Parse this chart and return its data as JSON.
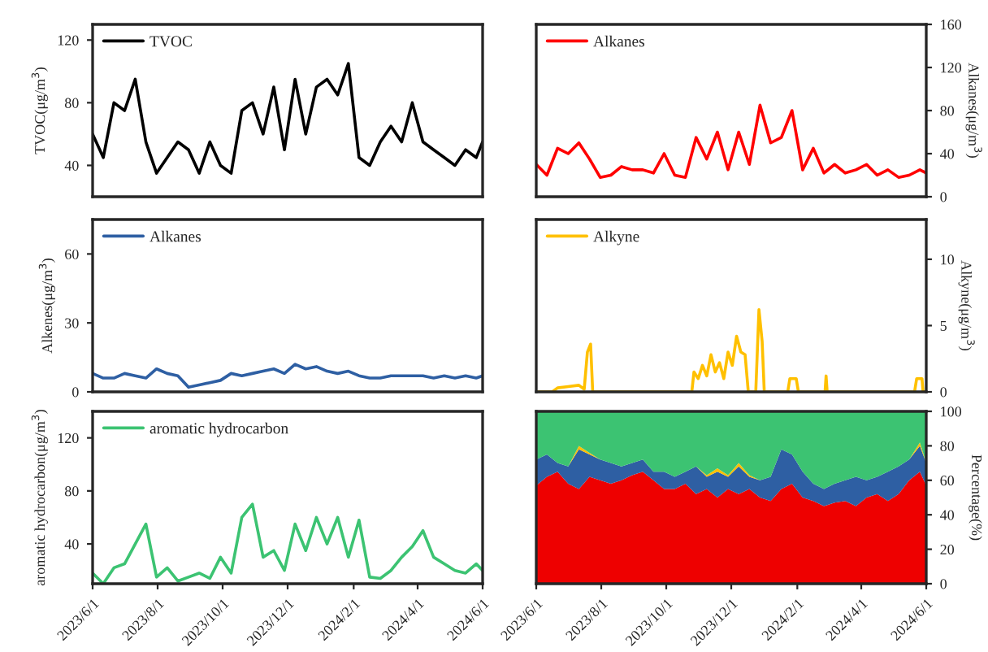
{
  "chart_data": [
    {
      "type": "line",
      "ylabel": "TVOC(μg/m$^{3}$)",
      "legend": "top left",
      "tick_labels": "y",
      "x": [
        "2023-06-01",
        "2023-06-11",
        "2023-06-21",
        "2023-07-01",
        "2023-07-11",
        "2023-07-21",
        "2023-07-31",
        "2023-08-10",
        "2023-08-20",
        "2023-08-30",
        "2023-09-09",
        "2023-09-19",
        "2023-09-29",
        "2023-10-09",
        "2023-10-19",
        "2023-10-29",
        "2023-11-08",
        "2023-11-18",
        "2023-11-28",
        "2023-12-08",
        "2023-12-18",
        "2023-12-28",
        "2024-01-07",
        "2024-01-17",
        "2024-01-27",
        "2024-02-06",
        "2024-02-16",
        "2024-02-26",
        "2024-03-07",
        "2024-03-17",
        "2024-03-27",
        "2024-04-06",
        "2024-04-16",
        "2024-04-26",
        "2024-05-06",
        "2024-05-16",
        "2024-05-26",
        "2024-06-01"
      ],
      "series": [
        {
          "name": "TVOC",
          "color": "#000000",
          "values": [
            60,
            45,
            80,
            75,
            95,
            55,
            35,
            45,
            55,
            50,
            35,
            55,
            40,
            35,
            75,
            80,
            60,
            90,
            50,
            95,
            60,
            90,
            95,
            85,
            105,
            45,
            40,
            55,
            65,
            55,
            80,
            55,
            50,
            45,
            40,
            50,
            45,
            55
          ]
        }
      ],
      "xlim": [
        "2023-06-01",
        "2024-06-01"
      ],
      "ylim": [
        20,
        130
      ],
      "yticks": [
        40,
        80,
        120
      ]
    },
    {
      "type": "line",
      "ylabel": "Alkanes(μg/m$^{3}$)",
      "legend": "top left",
      "tick_labels": "y",
      "x": [
        "2023-06-01",
        "2023-06-11",
        "2023-06-21",
        "2023-07-01",
        "2023-07-11",
        "2023-07-21",
        "2023-07-31",
        "2023-08-10",
        "2023-08-20",
        "2023-08-30",
        "2023-09-09",
        "2023-09-19",
        "2023-09-29",
        "2023-10-09",
        "2023-10-19",
        "2023-10-29",
        "2023-11-08",
        "2023-11-18",
        "2023-11-28",
        "2023-12-08",
        "2023-12-18",
        "2023-12-28",
        "2024-01-07",
        "2024-01-17",
        "2024-01-27",
        "2024-02-06",
        "2024-02-16",
        "2024-02-26",
        "2024-03-07",
        "2024-03-17",
        "2024-03-27",
        "2024-04-06",
        "2024-04-16",
        "2024-04-26",
        "2024-05-06",
        "2024-05-16",
        "2024-05-26",
        "2024-06-01"
      ],
      "series": [
        {
          "name": "Alkanes",
          "color": "#ff0000",
          "values": [
            30,
            20,
            45,
            40,
            50,
            35,
            18,
            20,
            28,
            25,
            25,
            22,
            40,
            20,
            18,
            55,
            35,
            60,
            25,
            60,
            30,
            85,
            50,
            55,
            80,
            25,
            45,
            22,
            30,
            22,
            25,
            30,
            20,
            25,
            18,
            20,
            25,
            22
          ]
        }
      ],
      "xlim": [
        "2023-06-01",
        "2024-06-01"
      ],
      "ylim": [
        0,
        160
      ],
      "yticks": [
        0,
        40,
        80,
        120,
        160
      ]
    },
    {
      "type": "line",
      "ylabel": "Alkenes(μg/m$^{3}$)",
      "legend": "top left",
      "tick_labels": "y",
      "x": [
        "2023-06-01",
        "2023-06-11",
        "2023-06-21",
        "2023-07-01",
        "2023-07-11",
        "2023-07-21",
        "2023-07-31",
        "2023-08-10",
        "2023-08-20",
        "2023-08-30",
        "2023-09-09",
        "2023-09-19",
        "2023-09-29",
        "2023-10-09",
        "2023-10-19",
        "2023-10-29",
        "2023-11-08",
        "2023-11-18",
        "2023-11-28",
        "2023-12-08",
        "2023-12-18",
        "2023-12-28",
        "2024-01-07",
        "2024-01-17",
        "2024-01-27",
        "2024-02-06",
        "2024-02-16",
        "2024-02-26",
        "2024-03-07",
        "2024-03-17",
        "2024-03-27",
        "2024-04-06",
        "2024-04-16",
        "2024-04-26",
        "2024-05-06",
        "2024-05-16",
        "2024-05-26",
        "2024-06-01"
      ],
      "series": [
        {
          "name": "Alkanes",
          "color": "#2e5fa3",
          "values": [
            8,
            6,
            6,
            8,
            7,
            6,
            10,
            8,
            7,
            2,
            3,
            4,
            5,
            8,
            7,
            8,
            9,
            10,
            8,
            12,
            10,
            11,
            9,
            8,
            9,
            7,
            6,
            6,
            7,
            7,
            7,
            7,
            6,
            7,
            6,
            7,
            6,
            7
          ]
        }
      ],
      "xlim": [
        "2023-06-01",
        "2024-06-01"
      ],
      "ylim": [
        0,
        75
      ],
      "yticks": [
        0,
        30,
        60
      ]
    },
    {
      "type": "line",
      "ylabel": "Alkyne(μg/m$^{3}$)",
      "legend": "top left",
      "tick_labels": "y",
      "x": [
        "2023-06-01",
        "2023-06-16",
        "2023-06-21",
        "2023-07-01",
        "2023-07-11",
        "2023-07-16",
        "2023-07-19",
        "2023-07-22",
        "2023-07-24",
        "2023-10-25",
        "2023-10-27",
        "2023-10-31",
        "2023-11-04",
        "2023-11-08",
        "2023-11-12",
        "2023-11-16",
        "2023-11-20",
        "2023-11-24",
        "2023-11-28",
        "2023-12-02",
        "2023-12-06",
        "2023-12-10",
        "2023-12-14",
        "2023-12-17",
        "2023-12-24",
        "2023-12-27",
        "2023-12-30",
        "2024-01-01",
        "2024-01-23",
        "2024-01-25",
        "2024-01-31",
        "2024-02-02",
        "2024-02-27",
        "2024-02-28",
        "2024-02-29",
        "2024-05-21",
        "2024-05-23",
        "2024-05-28",
        "2024-05-29",
        "2024-06-01"
      ],
      "series": [
        {
          "name": "Alkyne",
          "color": "#ffc000",
          "values": [
            0,
            0,
            0.3,
            0.4,
            0.5,
            0.2,
            3.0,
            3.6,
            0,
            0,
            1.5,
            1.0,
            2.0,
            1.2,
            2.8,
            1.5,
            2.2,
            1.0,
            3.0,
            2.0,
            4.2,
            3.0,
            2.8,
            0,
            0,
            6.2,
            3.8,
            0,
            0,
            1.0,
            1.0,
            0,
            0,
            1.2,
            0,
            0,
            1.0,
            1.0,
            0,
            0
          ]
        }
      ],
      "xlim": [
        "2023-06-01",
        "2024-06-01"
      ],
      "ylim": [
        0,
        13
      ],
      "yticks": [
        0,
        5,
        10
      ]
    },
    {
      "type": "line",
      "ylabel": "aromatic hydrocarbon(μg/m$^{3}$)",
      "legend": "top left",
      "x": [
        "2023-06-01",
        "2023-06-11",
        "2023-06-21",
        "2023-07-01",
        "2023-07-11",
        "2023-07-21",
        "2023-07-31",
        "2023-08-10",
        "2023-08-20",
        "2023-08-30",
        "2023-09-09",
        "2023-09-19",
        "2023-09-29",
        "2023-10-09",
        "2023-10-19",
        "2023-10-29",
        "2023-11-08",
        "2023-11-18",
        "2023-11-28",
        "2023-12-08",
        "2023-12-18",
        "2023-12-28",
        "2024-01-07",
        "2024-01-17",
        "2024-01-27",
        "2024-02-06",
        "2024-02-16",
        "2024-02-26",
        "2024-03-07",
        "2024-03-17",
        "2024-03-27",
        "2024-04-06",
        "2024-04-16",
        "2024-04-26",
        "2024-05-06",
        "2024-05-16",
        "2024-05-26",
        "2024-06-01"
      ],
      "series": [
        {
          "name": "aromatic hydrocarbon",
          "color": "#3cc372",
          "values": [
            18,
            10,
            22,
            25,
            40,
            55,
            15,
            22,
            12,
            15,
            18,
            14,
            30,
            18,
            60,
            70,
            30,
            35,
            20,
            55,
            35,
            60,
            40,
            60,
            30,
            58,
            15,
            14,
            20,
            30,
            38,
            50,
            30,
            25,
            20,
            18,
            25,
            20
          ]
        }
      ],
      "xlim": [
        "2023-06-01",
        "2024-06-01"
      ],
      "ylim": [
        10,
        140
      ],
      "yticks": [
        40,
        80,
        120
      ],
      "xticks": [
        {
          "value": "2023-06-01",
          "label": "2023/6/1"
        },
        {
          "value": "2023-08-01",
          "label": "2023/8/1"
        },
        {
          "value": "2023-10-01",
          "label": "2023/10/1"
        },
        {
          "value": "2023-12-01",
          "label": "2023/12/1"
        },
        {
          "value": "2024-02-01",
          "label": "2024/2/1"
        },
        {
          "value": "2024-04-01",
          "label": "2024/4/1"
        },
        {
          "value": "2024-06-01",
          "label": "2024/6/1"
        }
      ]
    },
    {
      "type": "area",
      "stacked": true,
      "ylabel": "Percentage(%)",
      "x": [
        "2023-06-01",
        "2023-06-11",
        "2023-06-21",
        "2023-07-01",
        "2023-07-11",
        "2023-07-21",
        "2023-07-31",
        "2023-08-10",
        "2023-08-20",
        "2023-08-30",
        "2023-09-09",
        "2023-09-19",
        "2023-09-29",
        "2023-10-09",
        "2023-10-19",
        "2023-10-29",
        "2023-11-08",
        "2023-11-18",
        "2023-11-28",
        "2023-12-08",
        "2023-12-18",
        "2023-12-28",
        "2024-01-07",
        "2024-01-17",
        "2024-01-27",
        "2024-02-06",
        "2024-02-16",
        "2024-02-26",
        "2024-03-07",
        "2024-03-17",
        "2024-03-27",
        "2024-04-06",
        "2024-04-16",
        "2024-04-26",
        "2024-05-06",
        "2024-05-16",
        "2024-05-26",
        "2024-06-01"
      ],
      "series": [
        {
          "color": "#ee0000",
          "values": [
            57,
            62,
            65,
            58,
            55,
            62,
            60,
            58,
            60,
            63,
            65,
            60,
            55,
            55,
            58,
            52,
            55,
            50,
            55,
            52,
            55,
            50,
            48,
            55,
            58,
            50,
            48,
            45,
            47,
            48,
            45,
            50,
            52,
            48,
            52,
            60,
            65,
            57
          ]
        },
        {
          "color": "#2e5fa3",
          "values": [
            15,
            13,
            5,
            10,
            23,
            13,
            12,
            12,
            8,
            7,
            7,
            5,
            10,
            7,
            7,
            16,
            7,
            15,
            7,
            16,
            7,
            10,
            14,
            23,
            17,
            15,
            10,
            10,
            11,
            12,
            17,
            10,
            10,
            17,
            16,
            12,
            15,
            13
          ]
        },
        {
          "color": "#ffc000",
          "values": [
            0,
            0,
            0,
            0,
            2,
            1,
            0,
            0,
            0,
            0,
            0,
            0,
            0,
            0,
            0,
            0,
            1,
            2,
            1,
            2,
            1,
            0,
            0,
            0,
            0,
            0,
            0,
            0,
            0,
            0,
            0,
            0,
            0,
            0,
            0,
            0,
            2,
            0
          ]
        },
        {
          "color": "#3cc372",
          "values": [
            28,
            25,
            30,
            32,
            20,
            24,
            28,
            30,
            32,
            30,
            28,
            35,
            35,
            38,
            35,
            32,
            37,
            33,
            37,
            30,
            37,
            40,
            38,
            22,
            25,
            35,
            42,
            45,
            42,
            40,
            38,
            40,
            38,
            35,
            32,
            28,
            18,
            30
          ]
        }
      ],
      "xlim": [
        "2023-06-01",
        "2024-06-01"
      ],
      "ylim": [
        0,
        100
      ],
      "yticks": [
        0,
        20,
        40,
        60,
        80,
        100
      ],
      "xticks": [
        {
          "value": "2023-06-01",
          "label": "2023/6/1"
        },
        {
          "value": "2023-08-01",
          "label": "2023/8/1"
        },
        {
          "value": "2023-10-01",
          "label": "2023/10/1"
        },
        {
          "value": "2023-12-01",
          "label": "2023/12/1"
        },
        {
          "value": "2024-02-01",
          "label": "2024/2/1"
        },
        {
          "value": "2024-04-01",
          "label": "2024/4/1"
        },
        {
          "value": "2024-06-01",
          "label": "2024/6/1"
        }
      ]
    }
  ]
}
